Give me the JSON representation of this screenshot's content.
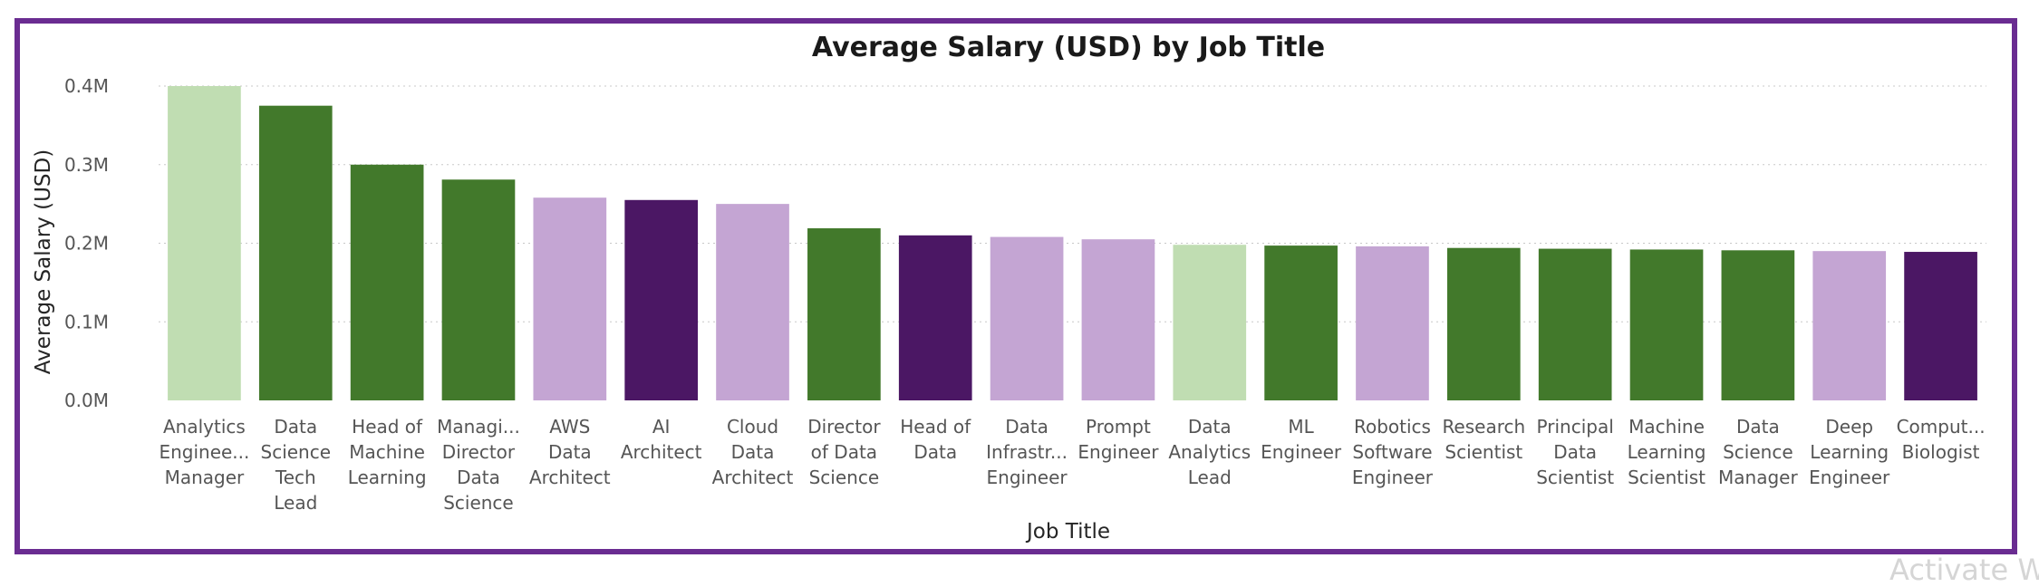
{
  "watermark": "Activate W",
  "chart_data": {
    "type": "bar",
    "title": "Average Salary (USD) by Job Title",
    "xlabel": "Job Title",
    "ylabel": "Average Salary (USD)",
    "ylim": [
      0,
      400000
    ],
    "yticks": [
      {
        "value": 0,
        "label": "0.0M"
      },
      {
        "value": 100000,
        "label": "0.1M"
      },
      {
        "value": 200000,
        "label": "0.2M"
      },
      {
        "value": 300000,
        "label": "0.3M"
      },
      {
        "value": 400000,
        "label": "0.4M"
      }
    ],
    "grid": true,
    "legend": "none",
    "palette": {
      "light_green": "#c0ddb2",
      "dark_green": "#42792b",
      "light_purple": "#c4a5d3",
      "dark_purple": "#4b1764"
    },
    "categories": [
      {
        "name": "Analytics Engineering Manager",
        "label_lines": [
          "Analytics",
          "Enginee...",
          "Manager"
        ]
      },
      {
        "name": "Data Science Tech Lead",
        "label_lines": [
          "Data",
          "Science",
          "Tech",
          "Lead"
        ]
      },
      {
        "name": "Head of Machine Learning",
        "label_lines": [
          "Head of",
          "Machine",
          "Learning"
        ]
      },
      {
        "name": "Managing Director Data Science",
        "label_lines": [
          "Managi...",
          "Director",
          "Data",
          "Science"
        ]
      },
      {
        "name": "AWS Data Architect",
        "label_lines": [
          "AWS",
          "Data",
          "Architect"
        ]
      },
      {
        "name": "AI Architect",
        "label_lines": [
          "AI",
          "Architect"
        ]
      },
      {
        "name": "Cloud Data Architect",
        "label_lines": [
          "Cloud",
          "Data",
          "Architect"
        ]
      },
      {
        "name": "Director of Data Science",
        "label_lines": [
          "Director",
          "of Data",
          "Science"
        ]
      },
      {
        "name": "Head of Data",
        "label_lines": [
          "Head of",
          "Data"
        ]
      },
      {
        "name": "Data Infrastructure Engineer",
        "label_lines": [
          "Data",
          "Infrastr...",
          "Engineer"
        ]
      },
      {
        "name": "Prompt Engineer",
        "label_lines": [
          "Prompt",
          "Engineer"
        ]
      },
      {
        "name": "Data Analytics Lead",
        "label_lines": [
          "Data",
          "Analytics",
          "Lead"
        ]
      },
      {
        "name": "ML Engineer",
        "label_lines": [
          "ML",
          "Engineer"
        ]
      },
      {
        "name": "Robotics Software Engineer",
        "label_lines": [
          "Robotics",
          "Software",
          "Engineer"
        ]
      },
      {
        "name": "Research Scientist",
        "label_lines": [
          "Research",
          "Scientist"
        ]
      },
      {
        "name": "Principal Data Scientist",
        "label_lines": [
          "Principal",
          "Data",
          "Scientist"
        ]
      },
      {
        "name": "Machine Learning Scientist",
        "label_lines": [
          "Machine",
          "Learning",
          "Scientist"
        ]
      },
      {
        "name": "Data Science Manager",
        "label_lines": [
          "Data",
          "Science",
          "Manager"
        ]
      },
      {
        "name": "Deep Learning Engineer",
        "label_lines": [
          "Deep",
          "Learning",
          "Engineer"
        ]
      },
      {
        "name": "Computational Biologist",
        "label_lines": [
          "Comput...",
          "Biologist"
        ]
      }
    ],
    "values": [
      400000,
      375000,
      300000,
      281000,
      258000,
      255000,
      250000,
      219000,
      210000,
      208000,
      205000,
      198000,
      197000,
      196000,
      194000,
      193000,
      192000,
      191000,
      190000,
      189000
    ],
    "colors": [
      "#c0ddb2",
      "#42792b",
      "#42792b",
      "#42792b",
      "#c4a5d3",
      "#4b1764",
      "#c4a5d3",
      "#42792b",
      "#4b1764",
      "#c4a5d3",
      "#c4a5d3",
      "#c0ddb2",
      "#42792b",
      "#c4a5d3",
      "#42792b",
      "#42792b",
      "#42792b",
      "#42792b",
      "#c4a5d3",
      "#4b1764"
    ]
  }
}
